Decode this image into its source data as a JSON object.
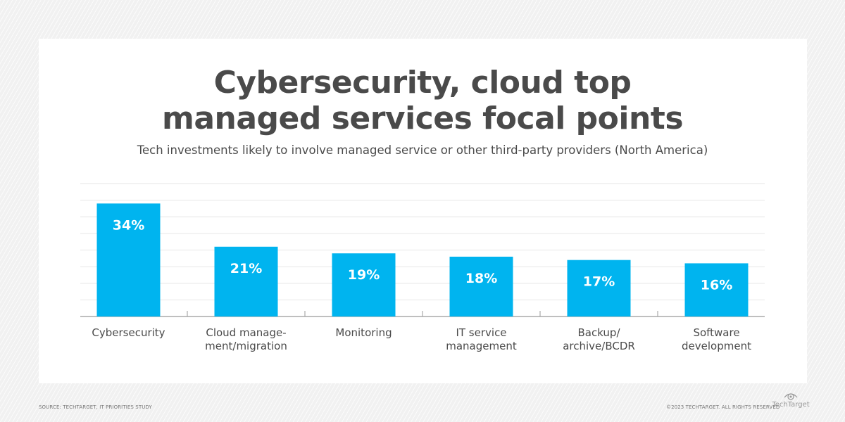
{
  "title_line1": "Cybersecurity, cloud top",
  "title_line2": "managed services focal points",
  "subtitle": "Tech investments likely to involve managed service or other third-party providers (North America)",
  "footer": {
    "source": "SOURCE: TECHTARGET, IT PRIORITIES STUDY",
    "copyright": "©2023 TECHTARGET. ALL RIGHTS RESERVED",
    "logo_text": "TechTarget"
  },
  "colors": {
    "bar": "#00b4ef",
    "grid": "#e6e6e6",
    "text": "#4a4a4a"
  },
  "chart_data": {
    "type": "bar",
    "title": "Cybersecurity, cloud top managed services focal points",
    "subtitle": "Tech investments likely to involve managed service or other third-party providers (North America)",
    "categories": [
      [
        "Cybersecurity"
      ],
      [
        "Cloud manage-",
        "ment/migration"
      ],
      [
        "Monitoring"
      ],
      [
        "IT service",
        "management"
      ],
      [
        "Backup/",
        "archive/BCDR"
      ],
      [
        "Software",
        "development"
      ]
    ],
    "values": [
      34,
      21,
      19,
      18,
      17,
      16
    ],
    "data_labels": [
      "34%",
      "21%",
      "19%",
      "18%",
      "17%",
      "16%"
    ],
    "unit": "%",
    "ylim": [
      0,
      40
    ],
    "grid": true,
    "y_axis_labels": false
  }
}
